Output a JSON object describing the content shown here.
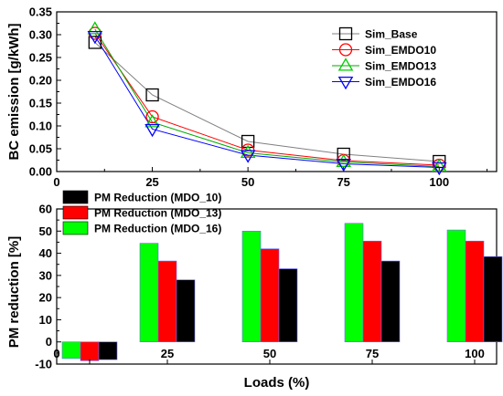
{
  "chart_data": [
    {
      "type": "line",
      "ylabel": "BC emission [g/kWh]",
      "xlim": [
        0,
        115
      ],
      "ylim": [
        0,
        0.35
      ],
      "x_ticks": [
        "0",
        "25",
        "50",
        "75",
        "100"
      ],
      "y_ticks": [
        "0.00",
        "0.05",
        "0.10",
        "0.15",
        "0.20",
        "0.25",
        "0.30",
        "0.35"
      ],
      "x": [
        10,
        25,
        50,
        75,
        100
      ],
      "legend_position": "top-right",
      "series": [
        {
          "name": "Sim_Base",
          "marker": "square",
          "color": "#000000",
          "line_color": "#808080",
          "values": [
            0.283,
            0.168,
            0.066,
            0.038,
            0.022
          ]
        },
        {
          "name": "Sim_EMDO10",
          "marker": "circle",
          "color": "#ff0000",
          "line_color": "#ff0000",
          "values": [
            0.303,
            0.12,
            0.047,
            0.024,
            0.014
          ]
        },
        {
          "name": "Sim_EMDO13",
          "marker": "triangle-up",
          "color": "#00cc00",
          "line_color": "#00aa00",
          "values": [
            0.312,
            0.108,
            0.041,
            0.021,
            0.011
          ]
        },
        {
          "name": "Sim_EMDO16",
          "marker": "triangle-down",
          "color": "#0000ff",
          "line_color": "#0000ff",
          "values": [
            0.297,
            0.093,
            0.036,
            0.017,
            0.009
          ]
        }
      ]
    },
    {
      "type": "bar",
      "xlabel": "Loads (%)",
      "ylabel": "PM reduction [%]",
      "x_zero_label": "0",
      "categories": [
        "10",
        "25",
        "50",
        "75",
        "100"
      ],
      "category_labels": [
        "",
        "25",
        "50",
        "75",
        "100"
      ],
      "ylim": [
        -10,
        60
      ],
      "y_ticks": [
        "-10",
        "0",
        "10",
        "20",
        "30",
        "40",
        "50",
        "60"
      ],
      "legend_position": "top-left",
      "series": [
        {
          "name": "PM Reduction  (MDO_16)",
          "color": "#00ff00",
          "values": [
            -7.5,
            44.5,
            50.0,
            53.5,
            50.5
          ]
        },
        {
          "name": "PM Reduction  (MDO_13)",
          "color": "#ff0000",
          "values": [
            -8.5,
            36.5,
            42.0,
            45.5,
            45.5
          ]
        },
        {
          "name": "PM Reduction  (MDO_10)",
          "color": "#000000",
          "values": [
            -8.0,
            28.0,
            33.0,
            36.5,
            38.5
          ]
        }
      ],
      "legend_order": [
        "PM Reduction  (MDO_10)",
        "PM Reduction  (MDO_13)",
        "PM Reduction  (MDO_16)"
      ]
    }
  ]
}
